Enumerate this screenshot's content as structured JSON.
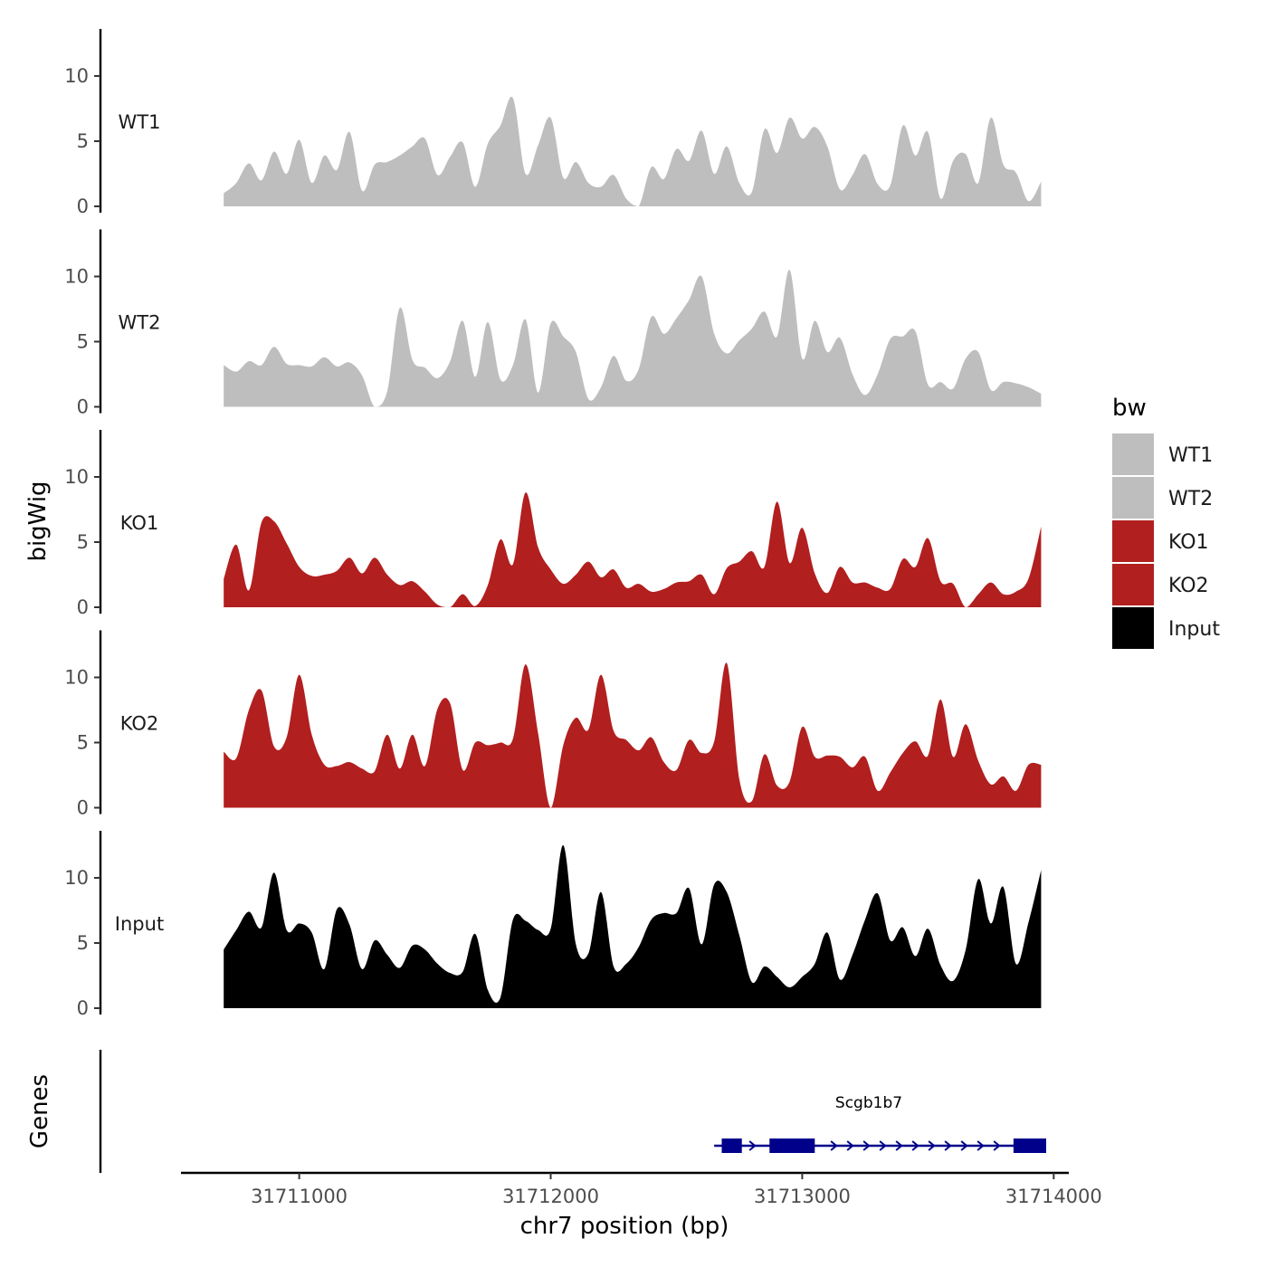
{
  "chart_data": {
    "type": "area",
    "title": "",
    "ylabel": "bigWig",
    "xlabel": "chr7 position (bp)",
    "genes_label": "Genes",
    "ylim": [
      0,
      14
    ],
    "yticks": [
      0,
      5,
      10
    ],
    "xlim": [
      31710530,
      31714060
    ],
    "xticks": [
      31711000,
      31712000,
      31713000,
      31714000
    ],
    "x": [
      31710700,
      31710750,
      31710800,
      31710850,
      31710900,
      31710950,
      31711000,
      31711050,
      31711100,
      31711150,
      31711200,
      31711250,
      31711300,
      31711350,
      31711400,
      31711450,
      31711500,
      31711550,
      31711600,
      31711650,
      31711700,
      31711750,
      31711800,
      31711850,
      31711900,
      31711950,
      31712000,
      31712050,
      31712100,
      31712150,
      31712200,
      31712250,
      31712300,
      31712350,
      31712400,
      31712450,
      31712500,
      31712550,
      31712600,
      31712650,
      31712700,
      31712750,
      31712800,
      31712850,
      31712900,
      31712950,
      31713000,
      31713050,
      31713100,
      31713150,
      31713200,
      31713250,
      31713300,
      31713350,
      31713400,
      31713450,
      31713500,
      31713550,
      31713600,
      31713650,
      31713700,
      31713750,
      31713800,
      31713850,
      31713900,
      31713950
    ],
    "series": [
      {
        "name": "WT1",
        "color": "#bebebe",
        "values": [
          1.0,
          1.8,
          3.3,
          2.0,
          4.2,
          2.5,
          5.1,
          1.8,
          3.9,
          2.8,
          5.7,
          1.2,
          3.2,
          3.4,
          3.9,
          4.6,
          5.2,
          2.4,
          3.8,
          4.9,
          1.5,
          4.8,
          6.2,
          8.3,
          2.5,
          4.7,
          6.8,
          2.2,
          3.4,
          1.8,
          1.5,
          2.4,
          0.6,
          0.0,
          3.0,
          2.1,
          4.4,
          3.5,
          5.8,
          2.5,
          4.6,
          1.8,
          1.1,
          5.9,
          4.1,
          6.8,
          5.2,
          6.1,
          4.6,
          1.3,
          2.4,
          4.0,
          1.7,
          1.6,
          6.2,
          3.9,
          5.7,
          0.6,
          3.5,
          4.0,
          1.8,
          6.8,
          3.2,
          2.6,
          0.4,
          1.9
        ]
      },
      {
        "name": "WT2",
        "color": "#bebebe",
        "values": [
          3.2,
          2.7,
          3.5,
          3.2,
          4.6,
          3.3,
          3.2,
          3.1,
          3.8,
          3.1,
          3.4,
          2.4,
          0.0,
          1.2,
          7.6,
          3.6,
          3.0,
          2.2,
          3.5,
          6.6,
          2.3,
          6.5,
          2.1,
          3.2,
          6.7,
          1.1,
          6.4,
          5.4,
          4.2,
          0.6,
          1.5,
          3.9,
          2.0,
          2.9,
          6.9,
          5.6,
          6.8,
          8.2,
          10.0,
          5.6,
          4.1,
          5.1,
          6.0,
          7.3,
          5.4,
          10.5,
          3.7,
          6.6,
          4.2,
          5.3,
          2.5,
          0.9,
          2.5,
          5.2,
          5.4,
          5.8,
          1.7,
          1.9,
          1.4,
          3.7,
          4.2,
          1.3,
          1.9,
          1.8,
          1.5,
          1.0
        ]
      },
      {
        "name": "KO1",
        "color": "#b21f1f",
        "values": [
          2.2,
          4.8,
          1.3,
          6.5,
          6.6,
          4.9,
          3.1,
          2.4,
          2.5,
          2.8,
          3.8,
          2.6,
          3.8,
          2.5,
          1.7,
          2.0,
          1.2,
          0.2,
          0.0,
          1.0,
          0.1,
          1.7,
          5.2,
          3.3,
          8.8,
          4.6,
          2.9,
          1.8,
          2.5,
          3.5,
          2.3,
          2.9,
          1.5,
          1.8,
          1.2,
          1.4,
          1.9,
          2.0,
          2.5,
          1.0,
          3.0,
          3.5,
          4.3,
          3.1,
          8.1,
          3.4,
          6.1,
          2.6,
          1.1,
          3.1,
          1.9,
          1.9,
          1.5,
          1.4,
          3.7,
          3.1,
          5.3,
          2.0,
          1.8,
          0.0,
          1.0,
          1.9,
          1.0,
          1.2,
          2.2,
          6.2
        ]
      },
      {
        "name": "KO2",
        "color": "#b21f1f",
        "values": [
          4.3,
          3.8,
          7.5,
          9.0,
          4.7,
          5.4,
          10.2,
          5.6,
          3.3,
          3.2,
          3.5,
          3.0,
          2.8,
          5.6,
          3.0,
          5.6,
          3.2,
          7.6,
          8.0,
          2.9,
          5.0,
          4.8,
          5.0,
          5.3,
          11.0,
          5.7,
          0.0,
          4.8,
          6.9,
          6.0,
          10.2,
          5.9,
          5.2,
          4.4,
          5.4,
          3.5,
          2.9,
          5.2,
          4.2,
          5.1,
          11.1,
          2.2,
          0.5,
          4.1,
          1.7,
          2.0,
          6.2,
          3.9,
          4.0,
          3.9,
          3.1,
          3.9,
          1.3,
          2.7,
          4.2,
          5.1,
          4.0,
          8.3,
          3.9,
          6.4,
          3.6,
          1.8,
          2.4,
          1.3,
          3.3,
          3.3
        ]
      },
      {
        "name": "Input",
        "color": "#000000",
        "values": [
          4.5,
          6.0,
          7.4,
          6.2,
          10.4,
          6.0,
          6.5,
          5.8,
          3.0,
          7.6,
          6.4,
          3.0,
          5.2,
          4.1,
          3.1,
          4.8,
          4.5,
          3.4,
          2.7,
          2.8,
          5.7,
          1.4,
          0.8,
          6.8,
          6.7,
          6.0,
          6.1,
          12.5,
          4.9,
          4.2,
          8.9,
          3.2,
          3.4,
          4.7,
          6.8,
          7.3,
          7.3,
          9.2,
          4.9,
          9.5,
          8.9,
          5.6,
          2.0,
          3.2,
          2.4,
          1.6,
          2.4,
          3.4,
          5.8,
          2.2,
          4.1,
          6.8,
          8.8,
          5.2,
          6.2,
          4.0,
          6.1,
          3.3,
          2.1,
          4.5,
          9.9,
          6.5,
          9.3,
          3.4,
          6.6,
          10.6
        ]
      }
    ],
    "legend": {
      "title": "bw",
      "position": "right",
      "entries": [
        "WT1",
        "WT2",
        "KO1",
        "KO2",
        "Input"
      ]
    },
    "gene_track": {
      "name": "Scgb1b7",
      "color": "#00008b",
      "start": 31712650,
      "end": 31713970,
      "exons": [
        [
          31712680,
          31712760
        ],
        [
          31712870,
          31713050
        ],
        [
          31713840,
          31713970
        ]
      ]
    }
  }
}
